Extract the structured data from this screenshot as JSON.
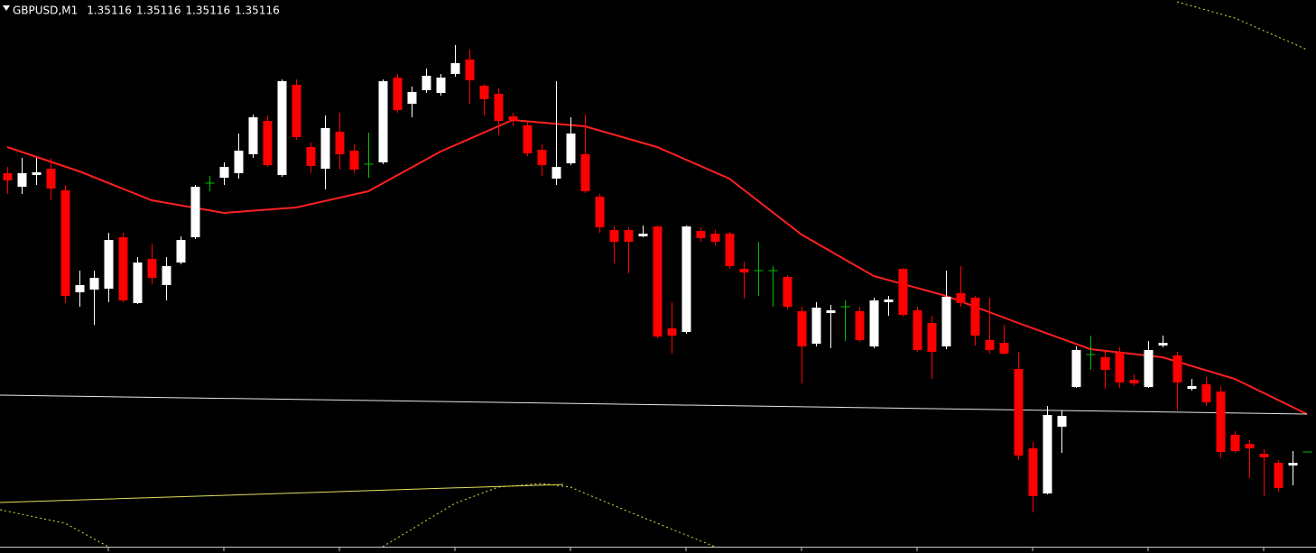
{
  "chart_data": {
    "type": "candlestick",
    "title": "GBPUSD,M1",
    "quote": [
      1.35116,
      1.35116,
      1.35116,
      1.35116
    ],
    "xlim": [
      -0.5,
      90.625
    ],
    "ylim": [
      1.350962,
      1.352188
    ],
    "up_color": "#ffffff",
    "down_color": "#ff0000",
    "doji_color": "#00c000",
    "open": [
      1.351804,
      1.351774,
      1.3518,
      1.351814,
      1.351766,
      1.35154,
      1.351546,
      1.351548,
      1.351662,
      1.351516,
      1.351614,
      1.351556,
      1.351606,
      1.351662,
      1.351782,
      1.351794,
      1.351804,
      1.351846,
      1.35192,
      1.3518,
      1.352,
      1.351862,
      1.351814,
      1.351896,
      1.351854,
      1.351824,
      1.351828,
      1.352016,
      1.351958,
      1.351988,
      1.351982,
      1.352024,
      1.352056,
      1.351998,
      1.35198,
      1.35193,
      1.35191,
      1.351856,
      1.351792,
      1.351826,
      1.351846,
      1.351752,
      1.351678,
      1.351678,
      1.351664,
      1.351686,
      1.35146,
      1.351452,
      1.351676,
      1.35167,
      1.35167,
      1.351592,
      1.351588,
      1.351588,
      1.351574,
      1.351498,
      1.351426,
      1.351494,
      1.351508,
      1.351498,
      1.35142,
      1.351518,
      1.351592,
      1.3515,
      1.351472,
      1.35142,
      1.351538,
      1.351528,
      1.351434,
      1.351428,
      1.35137,
      1.351194,
      1.351094,
      1.351242,
      1.35133,
      1.351402,
      1.351396,
      1.351406,
      1.351346,
      1.35133,
      1.351422,
      1.3514,
      1.351326,
      1.351336,
      1.35132,
      1.351224,
      1.351204,
      1.351182,
      1.351162,
      1.351156,
      1.351186
    ],
    "high": [
      1.351818,
      1.351838,
      1.351838,
      1.351838,
      1.351778,
      1.351588,
      1.351588,
      1.351672,
      1.351672,
      1.351618,
      1.351648,
      1.351618,
      1.351664,
      1.351778,
      1.351798,
      1.351828,
      1.351892,
      1.351934,
      1.351932,
      1.352012,
      1.352012,
      1.351872,
      1.351932,
      1.351938,
      1.351868,
      1.351894,
      1.352012,
      1.352024,
      1.351996,
      1.352036,
      1.352024,
      1.352088,
      1.352078,
      1.352002,
      1.351992,
      1.351938,
      1.351918,
      1.351868,
      1.352008,
      1.351928,
      1.351934,
      1.351758,
      1.351688,
      1.351684,
      1.351688,
      1.351688,
      1.351518,
      1.351688,
      1.351684,
      1.351678,
      1.351674,
      1.351608,
      1.351652,
      1.351598,
      1.351578,
      1.351508,
      1.351518,
      1.351512,
      1.351522,
      1.351508,
      1.351528,
      1.351532,
      1.351594,
      1.351508,
      1.351488,
      1.351588,
      1.351598,
      1.351532,
      1.351528,
      1.351468,
      1.351408,
      1.351208,
      1.351288,
      1.351278,
      1.35142,
      1.351444,
      1.351408,
      1.351418,
      1.351358,
      1.351432,
      1.351444,
      1.351408,
      1.351348,
      1.351352,
      1.351332,
      1.351232,
      1.351212,
      1.351192,
      1.351168,
      1.351188,
      1.351186
    ],
    "low": [
      1.351758,
      1.351758,
      1.351778,
      1.351744,
      1.351516,
      1.351508,
      1.351468,
      1.351518,
      1.351518,
      1.351514,
      1.351558,
      1.351522,
      1.351602,
      1.351658,
      1.351764,
      1.351778,
      1.351792,
      1.351838,
      1.351818,
      1.351796,
      1.351878,
      1.351804,
      1.351768,
      1.351812,
      1.351804,
      1.351794,
      1.351824,
      1.351938,
      1.351928,
      1.351982,
      1.351976,
      1.352018,
      1.351958,
      1.351932,
      1.351888,
      1.351908,
      1.351842,
      1.351798,
      1.351778,
      1.351822,
      1.35176,
      1.351672,
      1.351604,
      1.351582,
      1.351662,
      1.351438,
      1.351404,
      1.351448,
      1.351652,
      1.351644,
      1.351592,
      1.351526,
      1.351532,
      1.351508,
      1.351502,
      1.351338,
      1.35142,
      1.351416,
      1.351432,
      1.35143,
      1.351416,
      1.351488,
      1.351486,
      1.351408,
      1.351348,
      1.351414,
      1.351508,
      1.351422,
      1.351404,
      1.351402,
      1.351168,
      1.351052,
      1.351092,
      1.351184,
      1.351328,
      1.351368,
      1.351326,
      1.351328,
      1.351332,
      1.351328,
      1.351418,
      1.351278,
      1.351322,
      1.351288,
      1.351172,
      1.351184,
      1.351128,
      1.351088,
      1.351098,
      1.351112,
      1.351186
    ],
    "close": [
      1.351788,
      1.351804,
      1.351806,
      1.35177,
      1.351532,
      1.351556,
      1.351572,
      1.351656,
      1.351522,
      1.351606,
      1.351572,
      1.351598,
      1.351656,
      1.351774,
      1.351782,
      1.351818,
      1.351854,
      1.351928,
      1.351822,
      1.352008,
      1.351884,
      1.35182,
      1.351904,
      1.351846,
      1.351812,
      1.351824,
      1.352008,
      1.351944,
      1.351984,
      1.35202,
      1.352016,
      1.352048,
      1.35201,
      1.351968,
      1.35192,
      1.351922,
      1.351848,
      1.351822,
      1.351818,
      1.351892,
      1.351764,
      1.351684,
      1.351652,
      1.351652,
      1.35167,
      1.351442,
      1.351444,
      1.351686,
      1.35166,
      1.351652,
      1.351598,
      1.351584,
      1.351588,
      1.351588,
      1.351508,
      1.35142,
      1.351506,
      1.3515,
      1.351508,
      1.351434,
      1.351522,
      1.351524,
      1.35149,
      1.351412,
      1.351408,
      1.35153,
      1.351516,
      1.351444,
      1.351412,
      1.351404,
      1.351178,
      1.351088,
      1.351268,
      1.351266,
      1.351412,
      1.351402,
      1.351368,
      1.35134,
      1.351338,
      1.351412,
      1.351428,
      1.35134,
      1.351332,
      1.351296,
      1.351186,
      1.351188,
      1.351194,
      1.351174,
      1.351106,
      1.351162,
      1.351186
    ],
    "lines": [
      {
        "color": "#ff2020",
        "style": "solid",
        "width": 2,
        "x": [
          0,
          5,
          10,
          15,
          20,
          25,
          30,
          35,
          40,
          45,
          50,
          55,
          60,
          65,
          70,
          75,
          80,
          85,
          90
        ],
        "values": [
          1.351862,
          1.351808,
          1.351744,
          1.351716,
          1.351728,
          1.351764,
          1.351852,
          1.351922,
          1.351908,
          1.351862,
          1.351792,
          1.351668,
          1.351576,
          1.351532,
          1.351472,
          1.351414,
          1.351396,
          1.351348,
          1.35127
        ]
      },
      {
        "color": "#e6e6e6",
        "style": "solid",
        "width": 1,
        "x": [
          -0.5,
          90
        ],
        "values": [
          1.351312,
          1.35127
        ]
      },
      {
        "color": "#e0e060",
        "style": "solid",
        "width": 1,
        "x": [
          -0.5,
          38.5
        ],
        "values": [
          1.351074,
          1.351114
        ]
      },
      {
        "color": "#e0e040",
        "style": "dotted",
        "width": 1,
        "x": [
          -0.5,
          4,
          7,
          16,
          26,
          31,
          34,
          37,
          39,
          43,
          49,
          65,
          81,
          85,
          90
        ],
        "values": [
          1.351058,
          1.351028,
          1.350976,
          null,
          1.350976,
          1.351072,
          1.351108,
          1.351116,
          1.351108,
          1.351054,
          1.350976,
          null,
          1.352184,
          1.352148,
          1.352078
        ]
      }
    ]
  }
}
